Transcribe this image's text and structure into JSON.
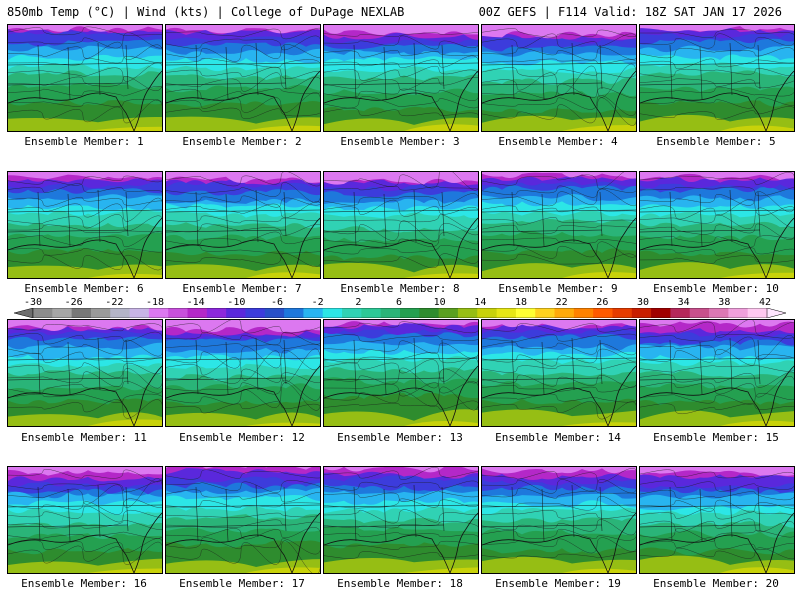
{
  "header": {
    "left": "850mb Temp (°C) | Wind (kts) | College of DuPage NEXLAB",
    "right": "00Z GEFS | F114 Valid: 18Z SAT JAN 17 2026"
  },
  "colorbar": {
    "ticks": [
      "-30",
      "-26",
      "-22",
      "-18",
      "-14",
      "-10",
      "-6",
      "-2",
      "2",
      "6",
      "10",
      "14",
      "18",
      "22",
      "26",
      "30",
      "34",
      "38",
      "42"
    ],
    "colors": [
      "#8c8c8c",
      "#a6a6a6",
      "#787878",
      "#9a9a9a",
      "#b4b4c8",
      "#c8b4e6",
      "#dc78f0",
      "#c850dc",
      "#b428c8",
      "#8c28dc",
      "#5a28dc",
      "#3c3cdc",
      "#2850c8",
      "#1e78dc",
      "#28b4f0",
      "#2ce6e6",
      "#30d2b4",
      "#2cc896",
      "#2ab478",
      "#24a050",
      "#2e8c2e",
      "#5aa020",
      "#96be14",
      "#c8d20a",
      "#e6e614",
      "#ffff32",
      "#ffd21e",
      "#ffaa0a",
      "#ff8200",
      "#ff5a00",
      "#e63c00",
      "#c81e00",
      "#a00000",
      "#b4285a",
      "#c8508c",
      "#dc78b4",
      "#f0a0dc",
      "#ffc8f0"
    ]
  },
  "panels": [
    {
      "label": "Ensemble Member: 1"
    },
    {
      "label": "Ensemble Member: 2"
    },
    {
      "label": "Ensemble Member: 3"
    },
    {
      "label": "Ensemble Member: 4"
    },
    {
      "label": "Ensemble Member: 5"
    },
    {
      "label": "Ensemble Member: 6"
    },
    {
      "label": "Ensemble Member: 7"
    },
    {
      "label": "Ensemble Member: 8"
    },
    {
      "label": "Ensemble Member: 9"
    },
    {
      "label": "Ensemble Member: 10"
    },
    {
      "label": "Ensemble Member: 11"
    },
    {
      "label": "Ensemble Member: 12"
    },
    {
      "label": "Ensemble Member: 13"
    },
    {
      "label": "Ensemble Member: 14"
    },
    {
      "label": "Ensemble Member: 15"
    },
    {
      "label": "Ensemble Member: 16"
    },
    {
      "label": "Ensemble Member: 17"
    },
    {
      "label": "Ensemble Member: 18"
    },
    {
      "label": "Ensemble Member: 19"
    },
    {
      "label": "Ensemble Member: 20"
    }
  ]
}
